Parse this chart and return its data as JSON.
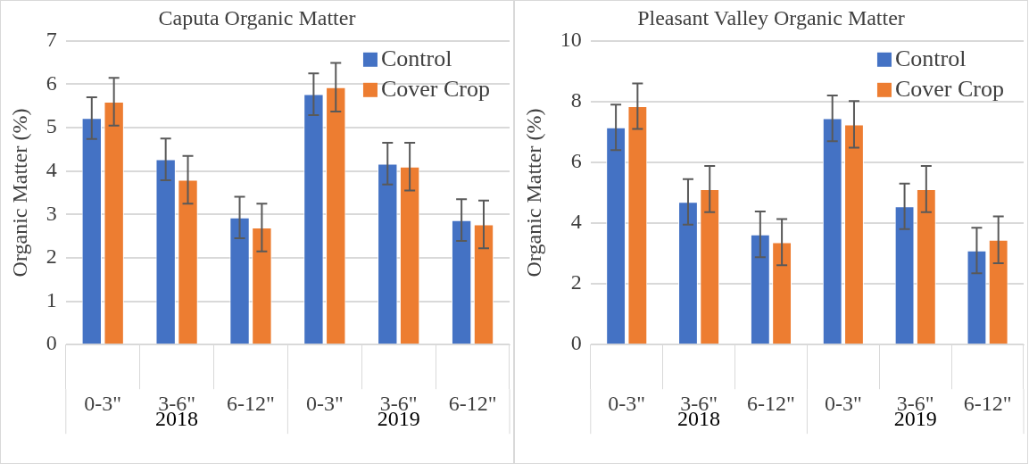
{
  "chart_data": [
    {
      "type": "bar",
      "title": "Caputa Organic Matter",
      "ylabel": "Organic Matter (%)",
      "categories": [
        "0-3\"",
        "3-6\"",
        "6-12\"",
        "0-3\"",
        "3-6\"",
        "6-12\""
      ],
      "series": [
        {
          "name": "Control",
          "color": "#4472c4",
          "values": [
            5.22,
            4.27,
            2.93,
            5.77,
            4.17,
            2.87
          ],
          "errors": [
            0.48,
            0.48,
            0.48,
            0.48,
            0.48,
            0.48
          ]
        },
        {
          "name": "Cover Crop",
          "color": "#ed7d31",
          "values": [
            5.6,
            3.8,
            2.7,
            5.93,
            4.1,
            2.77
          ],
          "errors": [
            0.55,
            0.55,
            0.55,
            0.56,
            0.55,
            0.55
          ]
        }
      ],
      "annotations": [
        "2018",
        "2019"
      ],
      "ylim": [
        0,
        7
      ],
      "yticks": [
        0,
        1,
        2,
        3,
        4,
        5,
        6,
        7
      ],
      "grid": "y",
      "legend": "top right"
    },
    {
      "type": "bar",
      "title": "Pleasant Valley Organic Matter",
      "ylabel": "Organic Matter (%)",
      "categories": [
        "0-3\"",
        "3-6\"",
        "6-12\"",
        "0-3\"",
        "3-6\"",
        "6-12\""
      ],
      "series": [
        {
          "name": "Control",
          "color": "#4472c4",
          "values": [
            7.15,
            4.7,
            3.63,
            7.45,
            4.55,
            3.1
          ],
          "errors": [
            0.75,
            0.75,
            0.75,
            0.75,
            0.75,
            0.75
          ]
        },
        {
          "name": "Cover Crop",
          "color": "#ed7d31",
          "values": [
            7.85,
            5.12,
            3.37,
            7.25,
            5.12,
            3.45
          ],
          "errors": [
            0.75,
            0.76,
            0.76,
            0.77,
            0.76,
            0.77
          ]
        }
      ],
      "annotations": [
        "2018",
        "2019"
      ],
      "ylim": [
        0,
        10
      ],
      "yticks": [
        0,
        2,
        4,
        6,
        8,
        10
      ],
      "grid": "y",
      "legend": "top right"
    }
  ]
}
